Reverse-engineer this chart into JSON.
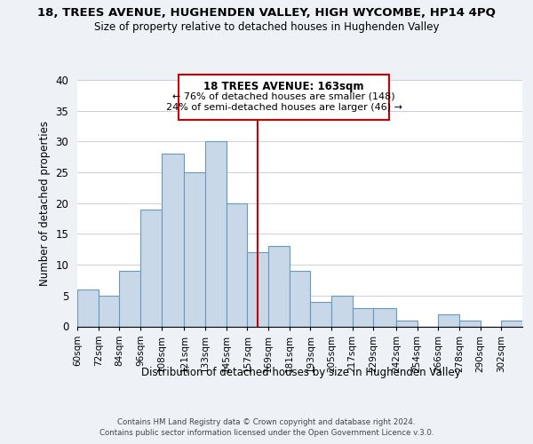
{
  "title": "18, TREES AVENUE, HUGHENDEN VALLEY, HIGH WYCOMBE, HP14 4PQ",
  "subtitle": "Size of property relative to detached houses in Hughenden Valley",
  "xlabel": "Distribution of detached houses by size in Hughenden Valley",
  "ylabel": "Number of detached properties",
  "footer_line1": "Contains HM Land Registry data © Crown copyright and database right 2024.",
  "footer_line2": "Contains public sector information licensed under the Open Government Licence v.3.0.",
  "bar_labels": [
    "60sqm",
    "72sqm",
    "84sqm",
    "96sqm",
    "108sqm",
    "121sqm",
    "133sqm",
    "145sqm",
    "157sqm",
    "169sqm",
    "181sqm",
    "193sqm",
    "205sqm",
    "217sqm",
    "229sqm",
    "242sqm",
    "254sqm",
    "266sqm",
    "278sqm",
    "290sqm",
    "302sqm"
  ],
  "bar_values": [
    6,
    5,
    9,
    19,
    28,
    25,
    30,
    20,
    12,
    13,
    9,
    4,
    5,
    3,
    3,
    1,
    0,
    2,
    1,
    0,
    1
  ],
  "bar_color": "#c8d8e8",
  "bar_edge_color": "#6699bb",
  "annotation_title": "18 TREES AVENUE: 163sqm",
  "annotation_line1": "← 76% of detached houses are smaller (148)",
  "annotation_line2": "24% of semi-detached houses are larger (46) →",
  "vline_x": 163,
  "vline_color": "#cc0000",
  "ylim": [
    0,
    40
  ],
  "yticks": [
    0,
    5,
    10,
    15,
    20,
    25,
    30,
    35,
    40
  ],
  "background_color": "#eef2f7",
  "plot_bg_color": "#ffffff",
  "grid_color": "#c8d0dc",
  "bin_edges": [
    60,
    72,
    84,
    96,
    108,
    121,
    133,
    145,
    157,
    169,
    181,
    193,
    205,
    217,
    229,
    242,
    254,
    266,
    278,
    290,
    302,
    314
  ]
}
